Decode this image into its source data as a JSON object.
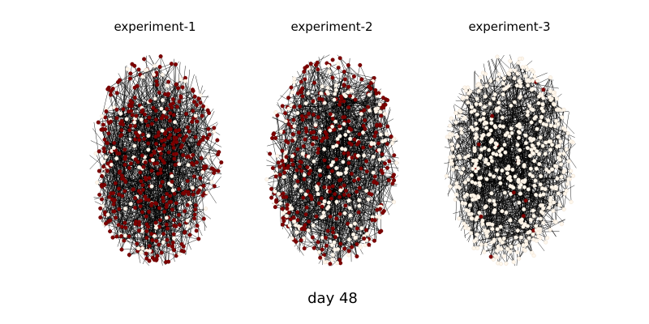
{
  "figure": {
    "caption": "day 48"
  },
  "panels": [
    {
      "title": "experiment-1",
      "infected_fraction": 0.8
    },
    {
      "title": "experiment-2",
      "infected_fraction": 0.62
    },
    {
      "title": "experiment-3",
      "infected_fraction": 0.03
    }
  ],
  "colors": {
    "infected_node": "#7f0000",
    "healthy_node": "#fff7ec",
    "edge": "#000000",
    "background": "#ffffff"
  }
}
